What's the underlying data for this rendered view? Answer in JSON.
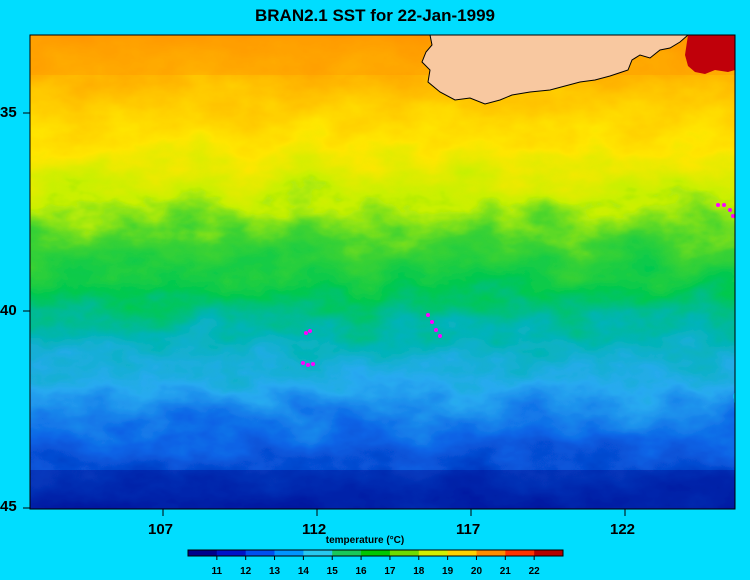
{
  "title": "BRAN2.1 SST for 22-Jan-1999",
  "map": {
    "region": "Southern Australia / Southern Ocean",
    "lon_range": [
      102.7,
      125.5
    ],
    "lat_range_south": [
      32.5,
      45
    ],
    "y_axis_ticks": [
      "35",
      "40",
      "45"
    ],
    "x_axis_ticks": [
      "107",
      "112",
      "117",
      "122"
    ],
    "land_color": "#f8c8a0",
    "ocean_features": "mesoscale eddies and fronts",
    "drifter_marker_color": "#ff00ff"
  },
  "colorbar": {
    "title": "temperature (°C)",
    "labels": [
      "11",
      "12",
      "13",
      "14",
      "15",
      "16",
      "17",
      "18",
      "19",
      "20",
      "21",
      "22"
    ],
    "colors": [
      "#00008c",
      "#0014c8",
      "#0050f0",
      "#0096ff",
      "#28c8f0",
      "#19c85a",
      "#00c800",
      "#6edc00",
      "#d2f000",
      "#ffd200",
      "#ff8c00",
      "#ff3200",
      "#b40000"
    ]
  }
}
